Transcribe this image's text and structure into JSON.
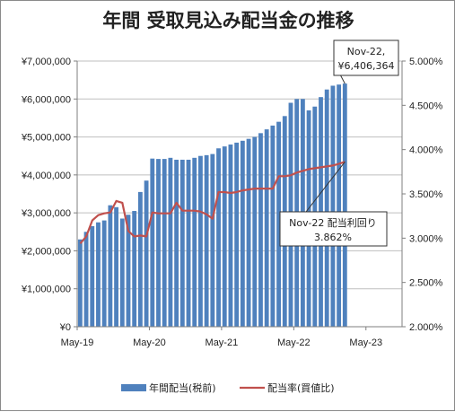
{
  "chart_data": {
    "type": "bar",
    "title": "年間 受取見込み配当金の推移",
    "x_start": "2019-05",
    "x_ticks": [
      "May-19",
      "May-20",
      "May-21",
      "May-22",
      "May-23"
    ],
    "y_left": {
      "min": 0,
      "max": 7000000,
      "ticks": [
        "¥0",
        "¥1,000,000",
        "¥2,000,000",
        "¥3,000,000",
        "¥4,000,000",
        "¥5,000,000",
        "¥6,000,000",
        "¥7,000,000"
      ]
    },
    "y_right": {
      "min": 2.0,
      "max": 5.0,
      "ticks": [
        "2.000%",
        "2.500%",
        "3.000%",
        "3.500%",
        "4.000%",
        "4.500%",
        "5.000%"
      ]
    },
    "series": [
      {
        "name": "年間配当(税前)",
        "type": "bar",
        "axis": "left",
        "color": "#4f81bd",
        "values": [
          2300000,
          2500000,
          2650000,
          2750000,
          2800000,
          3200000,
          3150000,
          2850000,
          2950000,
          3050000,
          3550000,
          3850000,
          4430000,
          4420000,
          4420000,
          4450000,
          4400000,
          4400000,
          4400000,
          4450000,
          4500000,
          4520000,
          4550000,
          4700000,
          4750000,
          4800000,
          4850000,
          4900000,
          4950000,
          5000000,
          5100000,
          5200000,
          5300000,
          5400000,
          5550000,
          5900000,
          6000000,
          6000000,
          5700000,
          5800000,
          6050000,
          6250000,
          6350000,
          6380000,
          6406364
        ]
      },
      {
        "name": "配当率(買値比)",
        "type": "line",
        "axis": "right",
        "color": "#c0504d",
        "values": [
          2.94,
          3.02,
          3.2,
          3.26,
          3.28,
          3.29,
          3.42,
          3.4,
          3.08,
          3.02,
          3.03,
          3.02,
          3.29,
          3.28,
          3.28,
          3.28,
          3.4,
          3.31,
          3.31,
          3.31,
          3.3,
          3.27,
          3.22,
          3.52,
          3.52,
          3.51,
          3.52,
          3.54,
          3.55,
          3.56,
          3.56,
          3.56,
          3.56,
          3.7,
          3.7,
          3.71,
          3.74,
          3.76,
          3.78,
          3.79,
          3.8,
          3.81,
          3.82,
          3.84,
          3.862
        ]
      }
    ],
    "annotations": {
      "last_value_line1": "Nov-22,",
      "last_value_line2": "¥6,406,364",
      "yield_line1": "Nov-22 配当利回り",
      "yield_line2": "3.862%"
    },
    "legend": {
      "placement": "bottom",
      "bar_label": "年間配当(税前)",
      "line_label": "配当率(買値比)"
    },
    "grid": "horizontal"
  }
}
